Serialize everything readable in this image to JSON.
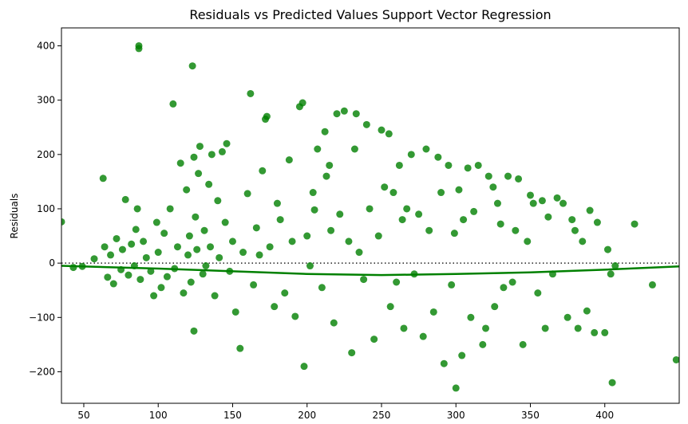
{
  "chart_data": {
    "type": "scatter",
    "title": "Residuals vs Predicted Values Support Vector Regression",
    "xlabel": "",
    "ylabel": "Residuals",
    "xlim": [
      35,
      450
    ],
    "ylim": [
      -258,
      433
    ],
    "xticks": [
      50,
      100,
      150,
      200,
      250,
      300,
      350,
      400
    ],
    "xtick_labels": [
      "50",
      "100",
      "150",
      "200",
      "250",
      "300",
      "350",
      "400"
    ],
    "yticks": [
      -200,
      -100,
      0,
      100,
      200,
      300,
      400
    ],
    "ytick_labels": [
      "−200",
      "−100",
      "0",
      "100",
      "200",
      "300",
      "400"
    ],
    "grid": false,
    "zero_line": {
      "y": 0,
      "style": "dotted",
      "color": "#222222"
    },
    "colors": {
      "points": "#008000",
      "fit_line": "#008000",
      "axes": "#000000"
    },
    "series": [
      {
        "kind": "points",
        "x": [
          35,
          43,
          49,
          57,
          63,
          64,
          66,
          68,
          70,
          72,
          75,
          76,
          78,
          80,
          82,
          84,
          85,
          86,
          87,
          87,
          88,
          90,
          92,
          95,
          97,
          99,
          100,
          102,
          104,
          106,
          108,
          110,
          111,
          113,
          115,
          117,
          119,
          120,
          121,
          122,
          123,
          124,
          124,
          125,
          126,
          127,
          128,
          130,
          131,
          132,
          134,
          135,
          136,
          138,
          140,
          141,
          143,
          145,
          146,
          148,
          150,
          152,
          155,
          157,
          160,
          162,
          164,
          166,
          168,
          170,
          172,
          173,
          175,
          178,
          180,
          182,
          185,
          188,
          190,
          192,
          195,
          197,
          198,
          200,
          202,
          204,
          205,
          207,
          210,
          212,
          213,
          215,
          216,
          218,
          220,
          222,
          225,
          228,
          230,
          232,
          233,
          235,
          238,
          240,
          242,
          245,
          248,
          250,
          252,
          255,
          256,
          258,
          260,
          262,
          264,
          265,
          267,
          270,
          272,
          275,
          278,
          280,
          282,
          285,
          288,
          290,
          292,
          295,
          297,
          299,
          300,
          302,
          304,
          305,
          308,
          310,
          312,
          315,
          318,
          320,
          322,
          325,
          326,
          328,
          330,
          332,
          335,
          338,
          340,
          342,
          345,
          348,
          350,
          352,
          355,
          358,
          360,
          362,
          365,
          368,
          372,
          375,
          378,
          380,
          382,
          385,
          388,
          390,
          393,
          395,
          400,
          402,
          404,
          405,
          407,
          420,
          432,
          448
        ],
        "y": [
          76,
          -8,
          -6,
          8,
          156,
          30,
          -26,
          15,
          -38,
          45,
          -12,
          25,
          117,
          -22,
          35,
          -5,
          62,
          100,
          400,
          395,
          -30,
          40,
          10,
          -15,
          -60,
          75,
          20,
          -45,
          55,
          -25,
          100,
          293,
          -10,
          30,
          184,
          -55,
          135,
          15,
          50,
          -35,
          363,
          195,
          -125,
          85,
          25,
          165,
          215,
          -20,
          60,
          -5,
          145,
          30,
          200,
          -60,
          115,
          10,
          205,
          75,
          220,
          -15,
          40,
          -90,
          -157,
          20,
          128,
          312,
          -40,
          65,
          15,
          170,
          265,
          270,
          30,
          -80,
          110,
          80,
          -55,
          190,
          40,
          -98,
          288,
          295,
          -190,
          50,
          -5,
          130,
          98,
          210,
          -45,
          242,
          160,
          180,
          60,
          -110,
          275,
          90,
          280,
          40,
          -165,
          210,
          275,
          20,
          -30,
          255,
          100,
          -140,
          50,
          245,
          140,
          238,
          -80,
          130,
          -35,
          180,
          80,
          -120,
          100,
          200,
          -20,
          90,
          -135,
          210,
          60,
          -90,
          195,
          130,
          -185,
          180,
          -40,
          55,
          -230,
          135,
          -170,
          80,
          175,
          -100,
          95,
          180,
          -150,
          -120,
          160,
          140,
          -80,
          110,
          72,
          -45,
          160,
          -35,
          60,
          155,
          -150,
          40,
          125,
          110,
          -55,
          115,
          -120,
          85,
          -20,
          120,
          110,
          -100,
          80,
          60,
          -120,
          40,
          -88,
          97,
          -128,
          75,
          -128,
          25,
          -20,
          -220,
          -5,
          72,
          -40,
          -178
        ]
      },
      {
        "kind": "fit",
        "x": [
          35,
          100,
          150,
          200,
          250,
          300,
          350,
          400,
          450
        ],
        "y": [
          -5,
          -10,
          -15,
          -20,
          -22,
          -20,
          -17,
          -12,
          -6
        ]
      }
    ]
  }
}
